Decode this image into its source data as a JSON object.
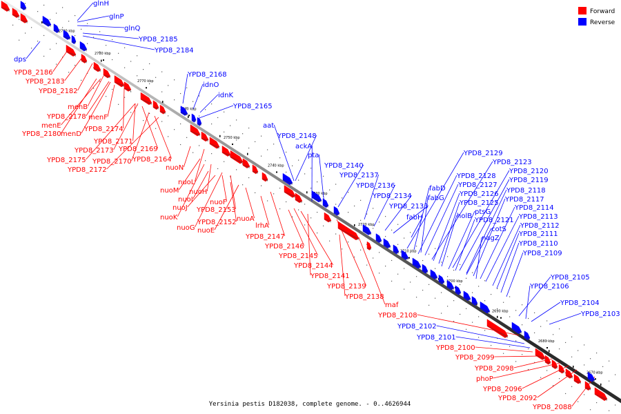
{
  "title": "Yersinia pestis D182038, complete genome. - 0..4626944",
  "legend": [
    {
      "label": "Forward",
      "color": "#ff0000"
    },
    {
      "label": "Reverse",
      "color": "#0000ff"
    }
  ],
  "strands": {
    "forward": "#ff0000",
    "reverse": "#0000ff"
  },
  "ticks": [
    "2790 kbp",
    "2780 kbp",
    "2770 kbp",
    "2760 kbp",
    "2750 kbp",
    "2740 kbp",
    "2730 kbp",
    "2720 kbp",
    "2710 kbp",
    "2700 kbp",
    "2690 kbp",
    "2680 kbp",
    "2670 kbp"
  ],
  "genes": [
    {
      "name": "glnH",
      "strand": "reverse"
    },
    {
      "name": "glnP",
      "strand": "reverse"
    },
    {
      "name": "glnQ",
      "strand": "reverse"
    },
    {
      "name": "YPD8_2185",
      "strand": "reverse"
    },
    {
      "name": "YPD8_2184",
      "strand": "reverse"
    },
    {
      "name": "dps",
      "strand": "reverse"
    },
    {
      "name": "YPD8_2186",
      "strand": "forward"
    },
    {
      "name": "YPD8_2183",
      "strand": "forward"
    },
    {
      "name": "YPD8_2182",
      "strand": "forward"
    },
    {
      "name": "YPD8_2168",
      "strand": "reverse"
    },
    {
      "name": "idnO",
      "strand": "reverse"
    },
    {
      "name": "idnK",
      "strand": "reverse"
    },
    {
      "name": "YPD8_2165",
      "strand": "reverse"
    },
    {
      "name": "menB",
      "strand": "forward"
    },
    {
      "name": "YPD8_2178",
      "strand": "forward"
    },
    {
      "name": "menF",
      "strand": "forward"
    },
    {
      "name": "menE",
      "strand": "forward"
    },
    {
      "name": "YPD8_2180",
      "strand": "forward"
    },
    {
      "name": "menD",
      "strand": "forward"
    },
    {
      "name": "YPD8_2174",
      "strand": "forward"
    },
    {
      "name": "YPD8_2171",
      "strand": "forward"
    },
    {
      "name": "YPD8_2173",
      "strand": "forward"
    },
    {
      "name": "YPD8_2169",
      "strand": "forward"
    },
    {
      "name": "YPD8_2175",
      "strand": "forward"
    },
    {
      "name": "YPD8_2170",
      "strand": "forward"
    },
    {
      "name": "YPD8_2164",
      "strand": "forward"
    },
    {
      "name": "YPD8_2172",
      "strand": "forward"
    },
    {
      "name": "aat",
      "strand": "reverse"
    },
    {
      "name": "YPD8_2148",
      "strand": "reverse"
    },
    {
      "name": "ackA",
      "strand": "reverse"
    },
    {
      "name": "pta",
      "strand": "reverse"
    },
    {
      "name": "YPD8_2140",
      "strand": "reverse"
    },
    {
      "name": "YPD8_2137",
      "strand": "reverse"
    },
    {
      "name": "YPD8_2136",
      "strand": "reverse"
    },
    {
      "name": "YPD8_2134",
      "strand": "reverse"
    },
    {
      "name": "YPD8_2133",
      "strand": "reverse"
    },
    {
      "name": "fabH",
      "strand": "reverse"
    },
    {
      "name": "nuoN",
      "strand": "forward"
    },
    {
      "name": "nuoL",
      "strand": "forward"
    },
    {
      "name": "nuoM",
      "strand": "forward"
    },
    {
      "name": "nuoH",
      "strand": "forward"
    },
    {
      "name": "nuoI",
      "strand": "forward"
    },
    {
      "name": "nuoF",
      "strand": "forward"
    },
    {
      "name": "nuoJ",
      "strand": "forward"
    },
    {
      "name": "YPD8_2153",
      "strand": "forward"
    },
    {
      "name": "nuoK",
      "strand": "forward"
    },
    {
      "name": "YPD8_2152",
      "strand": "forward"
    },
    {
      "name": "nuoA",
      "strand": "forward"
    },
    {
      "name": "nuoG",
      "strand": "forward"
    },
    {
      "name": "nuoE",
      "strand": "forward"
    },
    {
      "name": "lrhA",
      "strand": "forward"
    },
    {
      "name": "YPD8_2147",
      "strand": "forward"
    },
    {
      "name": "YPD8_2146",
      "strand": "forward"
    },
    {
      "name": "YPD8_2145",
      "strand": "forward"
    },
    {
      "name": "YPD8_2144",
      "strand": "forward"
    },
    {
      "name": "YPD8_2141",
      "strand": "forward"
    },
    {
      "name": "YPD8_2139",
      "strand": "forward"
    },
    {
      "name": "YPD8_2138",
      "strand": "forward"
    },
    {
      "name": "maf",
      "strand": "forward"
    },
    {
      "name": "YPD8_2129",
      "strand": "reverse"
    },
    {
      "name": "YPD8_2123",
      "strand": "reverse"
    },
    {
      "name": "YPD8_2128",
      "strand": "reverse"
    },
    {
      "name": "YPD8_2120",
      "strand": "reverse"
    },
    {
      "name": "YPD8_2127",
      "strand": "reverse"
    },
    {
      "name": "YPD8_2119",
      "strand": "reverse"
    },
    {
      "name": "fabD",
      "strand": "reverse"
    },
    {
      "name": "YPD8_2126",
      "strand": "reverse"
    },
    {
      "name": "YPD8_2118",
      "strand": "reverse"
    },
    {
      "name": "fabG",
      "strand": "reverse"
    },
    {
      "name": "YPD8_2125",
      "strand": "reverse"
    },
    {
      "name": "YPD8_2117",
      "strand": "reverse"
    },
    {
      "name": "ptsG",
      "strand": "reverse"
    },
    {
      "name": "YPD8_2114",
      "strand": "reverse"
    },
    {
      "name": "holB",
      "strand": "reverse"
    },
    {
      "name": "YPD8_2121",
      "strand": "reverse"
    },
    {
      "name": "YPD8_2113",
      "strand": "reverse"
    },
    {
      "name": "cotS",
      "strand": "reverse"
    },
    {
      "name": "YPD8_2112",
      "strand": "reverse"
    },
    {
      "name": "nagZ",
      "strand": "reverse"
    },
    {
      "name": "YPD8_2111",
      "strand": "reverse"
    },
    {
      "name": "YPD8_2110",
      "strand": "reverse"
    },
    {
      "name": "YPD8_2109",
      "strand": "reverse"
    },
    {
      "name": "YPD8_2105",
      "strand": "reverse"
    },
    {
      "name": "YPD8_2106",
      "strand": "reverse"
    },
    {
      "name": "YPD8_2104",
      "strand": "reverse"
    },
    {
      "name": "YPD8_2103",
      "strand": "reverse"
    },
    {
      "name": "YPD8_2108",
      "strand": "forward"
    },
    {
      "name": "YPD8_2102",
      "strand": "reverse"
    },
    {
      "name": "YPD8_2101",
      "strand": "reverse"
    },
    {
      "name": "YPD8_2100",
      "strand": "forward"
    },
    {
      "name": "YPD8_2099",
      "strand": "forward"
    },
    {
      "name": "YPD8_2098",
      "strand": "forward"
    },
    {
      "name": "phoP",
      "strand": "forward"
    },
    {
      "name": "YPD8_2096",
      "strand": "forward"
    },
    {
      "name": "YPD8_2092",
      "strand": "forward"
    },
    {
      "name": "YPD8_2088",
      "strand": "forward"
    }
  ]
}
